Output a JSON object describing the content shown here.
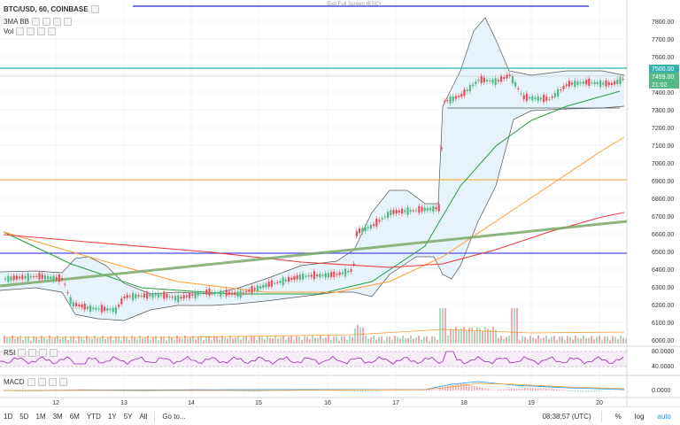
{
  "symbol": {
    "title": "BTC/USD, 60, COINBASE"
  },
  "indicators": {
    "bb": "3MA BB",
    "vol": "Vol"
  },
  "fullscreen_exit": "Exit Full Screen (ESC)",
  "price_axis": {
    "ticks": [
      "7800.00",
      "7700.00",
      "7600.00",
      "7500.00",
      "7400.00",
      "7300.00",
      "7200.00",
      "7100.00",
      "7000.00",
      "6900.00",
      "6800.00",
      "6700.00",
      "6600.00",
      "6500.00",
      "6400.00",
      "6300.00",
      "6200.00",
      "6100.00",
      "6000.00"
    ],
    "labels": {
      "level": "7500.00",
      "last": "7459.00",
      "countdown": "21:02"
    }
  },
  "time_axis": {
    "ticks": [
      "12",
      "13",
      "14",
      "15",
      "16",
      "17",
      "18",
      "19",
      "20"
    ]
  },
  "rsi": {
    "label": "RSI",
    "ticks": [
      "80.0000",
      "40.0000"
    ]
  },
  "macd": {
    "label": "MACD",
    "ticks": [
      "0.0000"
    ]
  },
  "toolbar": {
    "ranges": [
      "1D",
      "5D",
      "1M",
      "3M",
      "6M",
      "YTD",
      "1Y",
      "5Y",
      "All"
    ],
    "goto": "Go to...",
    "time": "08:38:57 (UTC)",
    "percent": "%",
    "log": "log",
    "auto": "auto"
  },
  "colors": {
    "up": "#53b987",
    "down": "#eb4d5c",
    "bb_fill": "#e3f2fa",
    "bb_line": "#555555",
    "ma_green": "#26a040",
    "ma_orange": "#ff9a2e",
    "ma_red": "#e83b3b",
    "trend": "#7caa6a",
    "hline_blue": "#4a4ae0",
    "hline_teal": "#33b1b1",
    "hline_orange": "#f0a030",
    "rsi": "#9c27b0",
    "accent": "#2196f3"
  }
}
